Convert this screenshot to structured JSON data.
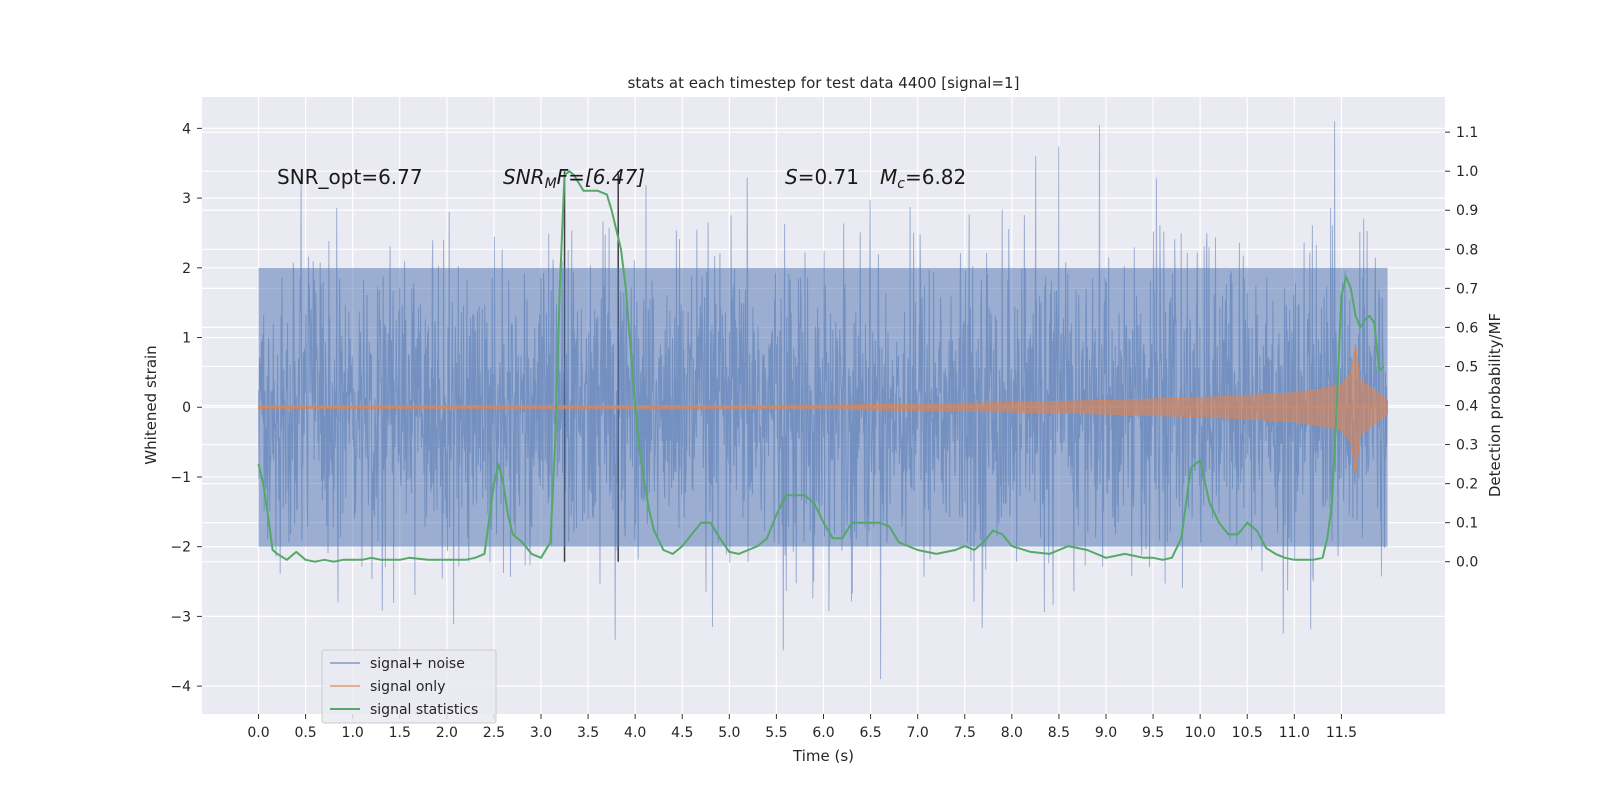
{
  "chart_data": {
    "type": "line",
    "title": "stats at each timestep for test data 4400 [signal=1]",
    "xlabel": "Time (s)",
    "ylabel": "Whitened strain",
    "y2label": "Detection probability/MF",
    "xlim": [
      -0.6,
      12.6
    ],
    "ylim": [
      -4.4,
      4.45
    ],
    "y2lim": [
      -0.39,
      1.19
    ],
    "x_ticks": [
      0.0,
      0.5,
      1.0,
      1.5,
      2.0,
      2.5,
      3.0,
      3.5,
      4.0,
      4.5,
      5.0,
      5.5,
      6.0,
      6.5,
      7.0,
      7.5,
      8.0,
      8.5,
      9.0,
      9.5,
      10.0,
      10.5,
      11.0,
      11.5
    ],
    "x_tick_labels": [
      "0.0",
      "0.5",
      "1.0",
      "1.5",
      "2.0",
      "2.5",
      "3.0",
      "3.5",
      "4.0",
      "4.5",
      "5.0",
      "5.5",
      "6.0",
      "6.5",
      "7.0",
      "7.5",
      "8.0",
      "8.5",
      "9.0",
      "9.5",
      "10.0",
      "10.5",
      "11.0",
      "11.5"
    ],
    "y_ticks": [
      -4,
      -3,
      -2,
      -1,
      0,
      1,
      2,
      3,
      4
    ],
    "y_tick_labels": [
      "−4",
      "−3",
      "−2",
      "−1",
      "0",
      "1",
      "2",
      "3",
      "4"
    ],
    "y2_ticks": [
      0.0,
      0.1,
      0.2,
      0.3,
      0.4,
      0.5,
      0.6,
      0.7,
      0.8,
      0.9,
      1.0,
      1.1
    ],
    "y2_tick_labels": [
      "0.0",
      "0.1",
      "0.2",
      "0.3",
      "0.4",
      "0.5",
      "0.6",
      "0.7",
      "0.8",
      "0.9",
      "1.0",
      "1.1"
    ],
    "grid": true,
    "legend_position": "lower-left",
    "annotations": {
      "snr_opt": "SNR_opt=6.77",
      "snr_mf_a": "SNR",
      "snr_mf_sub": "M",
      "snr_mf_b": "F=[6.47]",
      "s_var": "S",
      "s_val": "=0.71",
      "mc_var": "M",
      "mc_sub": "c",
      "mc_val": "=6.82"
    },
    "vertical_lines": [
      3.25,
      3.82
    ],
    "series": [
      {
        "name": "signal+ noise",
        "color": "#4c72b0",
        "envelope": {
          "x_range": [
            0.0,
            11.99
          ],
          "core_amplitude": 2.0,
          "peak_max": 4.1,
          "peak_min": -3.9
        }
      },
      {
        "name": "signal only",
        "color": "#dd8452",
        "amplitude": {
          "x": [
            0.0,
            6.0,
            8.0,
            9.0,
            10.0,
            10.5,
            11.0,
            11.3,
            11.5,
            11.6,
            11.65,
            11.7,
            11.99
          ],
          "y": [
            0.02,
            0.03,
            0.07,
            0.1,
            0.14,
            0.17,
            0.21,
            0.27,
            0.33,
            0.5,
            0.9,
            0.4,
            0.1
          ]
        }
      },
      {
        "name": "signal statistics",
        "color": "#55a868",
        "axis": "right",
        "x": [
          0.0,
          0.05,
          0.1,
          0.15,
          0.2,
          0.3,
          0.4,
          0.5,
          0.6,
          0.7,
          0.8,
          0.9,
          1.0,
          1.1,
          1.2,
          1.3,
          1.4,
          1.5,
          1.6,
          1.8,
          2.0,
          2.2,
          2.3,
          2.4,
          2.5,
          2.55,
          2.6,
          2.65,
          2.7,
          2.75,
          2.8,
          2.85,
          2.9,
          3.0,
          3.1,
          3.15,
          3.2,
          3.25,
          3.3,
          3.35,
          3.4,
          3.45,
          3.5,
          3.6,
          3.7,
          3.75,
          3.8,
          3.85,
          3.9,
          3.95,
          4.0,
          4.05,
          4.1,
          4.15,
          4.2,
          4.3,
          4.4,
          4.5,
          4.6,
          4.7,
          4.8,
          4.9,
          5.0,
          5.1,
          5.2,
          5.3,
          5.4,
          5.5,
          5.6,
          5.7,
          5.8,
          5.9,
          6.0,
          6.1,
          6.2,
          6.3,
          6.4,
          6.5,
          6.6,
          6.7,
          6.8,
          7.0,
          7.2,
          7.4,
          7.5,
          7.6,
          7.7,
          7.8,
          7.9,
          8.0,
          8.2,
          8.4,
          8.5,
          8.6,
          8.8,
          9.0,
          9.2,
          9.4,
          9.5,
          9.6,
          9.7,
          9.8,
          9.9,
          10.0,
          10.1,
          10.2,
          10.3,
          10.4,
          10.5,
          10.6,
          10.7,
          10.8,
          10.9,
          11.0,
          11.1,
          11.2,
          11.3,
          11.35,
          11.4,
          11.45,
          11.5,
          11.55,
          11.6,
          11.65,
          11.7,
          11.75,
          11.8,
          11.85,
          11.9,
          11.95
        ],
        "y": [
          0.25,
          0.2,
          0.12,
          0.03,
          0.02,
          0.005,
          0.025,
          0.005,
          0.0,
          0.005,
          0.0,
          0.005,
          0.005,
          0.005,
          0.01,
          0.005,
          0.005,
          0.005,
          0.01,
          0.005,
          0.005,
          0.005,
          0.01,
          0.02,
          0.2,
          0.25,
          0.2,
          0.12,
          0.07,
          0.06,
          0.05,
          0.035,
          0.02,
          0.01,
          0.05,
          0.3,
          0.7,
          0.99,
          1.0,
          0.99,
          0.97,
          0.95,
          0.95,
          0.95,
          0.94,
          0.9,
          0.85,
          0.8,
          0.7,
          0.55,
          0.4,
          0.28,
          0.2,
          0.13,
          0.08,
          0.03,
          0.02,
          0.04,
          0.07,
          0.1,
          0.1,
          0.06,
          0.025,
          0.02,
          0.03,
          0.04,
          0.06,
          0.12,
          0.17,
          0.17,
          0.17,
          0.15,
          0.1,
          0.06,
          0.06,
          0.1,
          0.1,
          0.1,
          0.1,
          0.09,
          0.05,
          0.03,
          0.02,
          0.03,
          0.04,
          0.03,
          0.05,
          0.08,
          0.07,
          0.04,
          0.025,
          0.02,
          0.03,
          0.04,
          0.03,
          0.01,
          0.02,
          0.01,
          0.01,
          0.005,
          0.01,
          0.06,
          0.24,
          0.26,
          0.15,
          0.1,
          0.07,
          0.07,
          0.1,
          0.08,
          0.035,
          0.02,
          0.01,
          0.005,
          0.005,
          0.005,
          0.01,
          0.06,
          0.15,
          0.4,
          0.68,
          0.73,
          0.7,
          0.63,
          0.6,
          0.62,
          0.63,
          0.61,
          0.49,
          0.5
        ]
      }
    ]
  }
}
